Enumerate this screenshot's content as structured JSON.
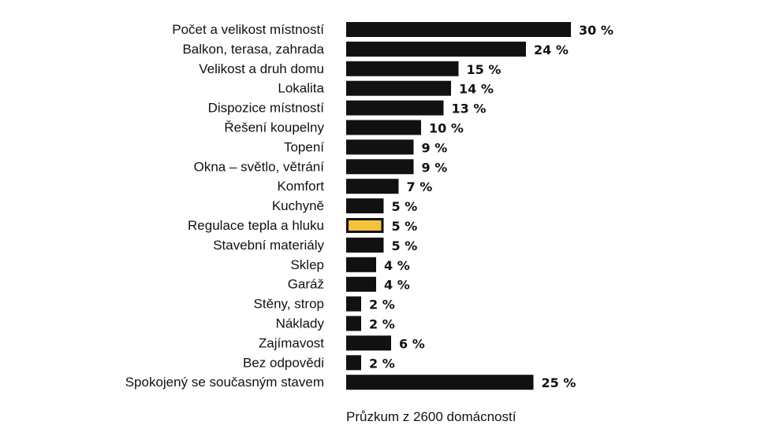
{
  "chart_data": {
    "type": "bar",
    "orientation": "horizontal",
    "categories": [
      "Počet a velikost místností",
      "Balkon, terasa, zahrada",
      "Velikost a druh domu",
      "Lokalita",
      "Dispozice místností",
      "Řešení koupelny",
      "Topení",
      "Okna – světlo, větrání",
      "Komfort",
      "Kuchyně",
      "Regulace tepla a hluku",
      "Stavební materiály",
      "Sklep",
      "Garáž",
      "Stěny, strop",
      "Náklady",
      "Zajímavost",
      "Bez odpovědi",
      "Spokojený se současným stavem"
    ],
    "values": [
      30,
      24,
      15,
      14,
      13,
      10,
      9,
      9,
      7,
      5,
      5,
      5,
      4,
      4,
      2,
      2,
      6,
      2,
      25
    ],
    "value_labels": [
      "30 %",
      "24 %",
      "15 %",
      "14 %",
      "13 %",
      "10 %",
      "9 %",
      "9 %",
      "7 %",
      "5 %",
      "5 %",
      "5 %",
      "4 %",
      "4 %",
      "2 %",
      "2 %",
      "6 %",
      "2 %",
      "25 %"
    ],
    "highlight_index": 10,
    "colors": {
      "bar": "#111111",
      "highlight": "#f5c33b",
      "highlight_stroke": "#111111"
    },
    "caption": "Průzkum z 2600 domácností",
    "grid": false,
    "legend": "none",
    "xlim": [
      0,
      30
    ]
  }
}
